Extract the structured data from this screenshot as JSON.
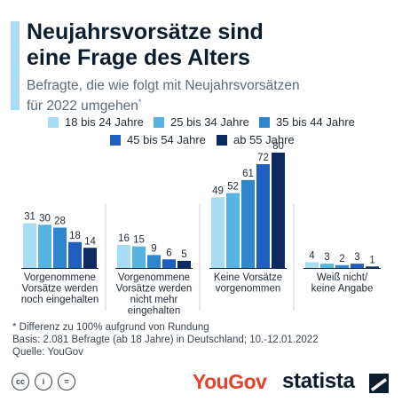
{
  "title_line1": "Neujahrsvorsätze sind",
  "title_line2": "eine Frage des Alters",
  "subtitle_line1": "Befragte, die wie folgt mit Neujahrsvorsätzen",
  "subtitle_line2": "für 2022 umgehen",
  "subtitle_mark": "*",
  "chart_data": {
    "type": "bar",
    "categories": [
      [
        "Vorgenommene",
        "Vorsätze werden",
        "noch eingehalten"
      ],
      [
        "Vorgenommene",
        "Vorsätze werden",
        "nicht mehr",
        "eingehalten"
      ],
      [
        "Keine Vorsätze",
        "vorgenommen"
      ],
      [
        "Weiß nicht/",
        "keine Angabe"
      ]
    ],
    "series": [
      {
        "name": "18 bis 24 Jahre",
        "color": "#a7dcf2",
        "values": [
          31,
          16,
          49,
          4
        ]
      },
      {
        "name": "25 bis 34 Jahre",
        "color": "#56b4e0",
        "values": [
          30,
          15,
          52,
          3
        ]
      },
      {
        "name": "35 bis 44 Jahre",
        "color": "#2f86cf",
        "values": [
          28,
          9,
          61,
          2
        ]
      },
      {
        "name": "45 bis 54 Jahre",
        "color": "#1f5fc0",
        "values": [
          18,
          6,
          72,
          3
        ]
      },
      {
        "name": "ab 55 Jahre",
        "color": "#0d2a5e",
        "values": [
          14,
          5,
          80,
          1
        ]
      }
    ],
    "ylim": [
      0,
      80
    ],
    "legend": "top",
    "grid": false,
    "data_labels": true
  },
  "footnotes": [
    "* Differenz zu 100% aufgrund von Rundung",
    "Basis: 2.081 Befragte (ab 18 Jahre) in Deutschland; 10.-12.01.2022",
    "Quelle: YouGov"
  ],
  "footer": {
    "license_icons": [
      "cc-icon",
      "by-icon",
      "nd-icon"
    ],
    "cc_text": "cc",
    "by_text": "i",
    "nd_text": "=",
    "yougov_logo": "YouGov",
    "statista_logo": "statista"
  }
}
